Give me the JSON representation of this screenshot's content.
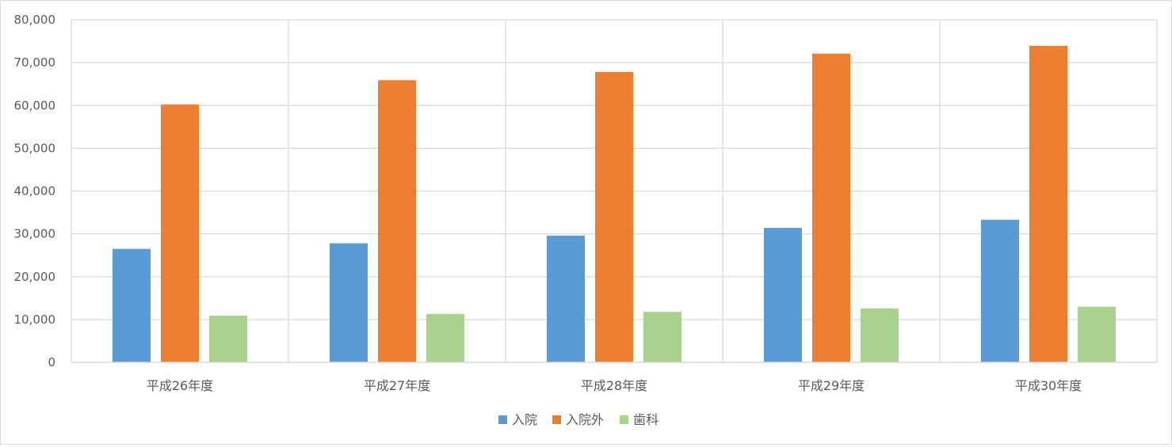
{
  "chart_data": {
    "type": "bar",
    "categories": [
      "平成26年度",
      "平成27年度",
      "平成28年度",
      "平成29年度",
      "平成30年度"
    ],
    "series": [
      {
        "name": "入院",
        "color": "#5b9bd5",
        "values": [
          26500,
          27800,
          29600,
          31400,
          33300
        ]
      },
      {
        "name": "入院外",
        "color": "#ed7d31",
        "values": [
          60200,
          65900,
          67800,
          72100,
          73900
        ]
      },
      {
        "name": "歯科",
        "color": "#a9d18e",
        "values": [
          10900,
          11300,
          11800,
          12600,
          13000
        ]
      }
    ],
    "yticks": [
      "0",
      "10,000",
      "20,000",
      "30,000",
      "40,000",
      "50,000",
      "60,000",
      "70,000",
      "80,000"
    ],
    "ylim": [
      0,
      80000
    ],
    "grid": true,
    "legend_position": "bottom-center"
  }
}
